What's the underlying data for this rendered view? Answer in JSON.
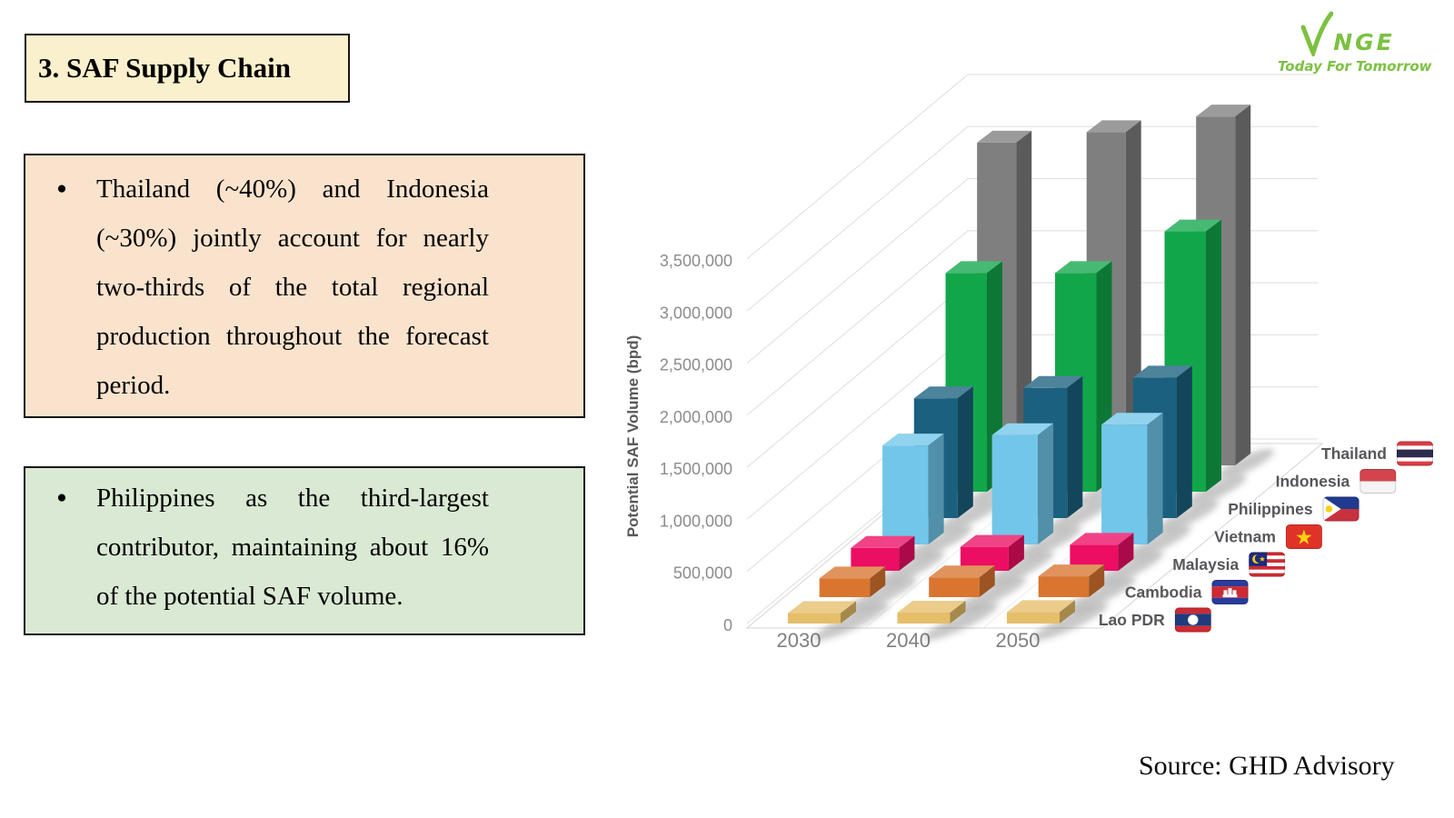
{
  "slide": {
    "title": "3. SAF Supply Chain",
    "bullets": [
      {
        "marker": "●",
        "text": "Thailand (~40%) and Indonesia (~30%) jointly account for nearly two-thirds of the total regional production throughout the forecast period."
      },
      {
        "marker": "●",
        "text": "Philippines as the third-largest contributor, maintaining about 16% of the potential SAF volume."
      }
    ],
    "logo": {
      "brand": "VNGE",
      "brand_mark_icon": "v-checkmark-icon",
      "brand_text": "NGE",
      "tagline": "Today For Tomorrow",
      "color": "#7CC142"
    },
    "source": "Source: GHD Advisory"
  },
  "chart_data": {
    "type": "bar",
    "projection": "3d",
    "title": "",
    "xlabel": "",
    "ylabel": "Potential SAF Volume (bpd)",
    "categories": [
      "2030",
      "2040",
      "2050"
    ],
    "y_ticks": [
      "0",
      "500,000",
      "1,000,000",
      "1,500,000",
      "2,000,000",
      "2,500,000",
      "3,000,000",
      "3,500,000"
    ],
    "ylim": [
      0,
      3500000
    ],
    "grid": true,
    "legend_position": "right-diagonal",
    "series": [
      {
        "name": "Thailand",
        "color": "#7F7F7F",
        "flag_icon": "thailand-flag",
        "values": [
          3100000,
          3200000,
          3350000
        ]
      },
      {
        "name": "Indonesia",
        "color": "#12A64B",
        "flag_icon": "indonesia-flag",
        "values": [
          2100000,
          2100000,
          2500000
        ]
      },
      {
        "name": "Philippines",
        "color": "#1B607F",
        "flag_icon": "philippines-flag",
        "values": [
          1150000,
          1250000,
          1350000
        ]
      },
      {
        "name": "Vietnam",
        "color": "#72C6E9",
        "flag_icon": "vietnam-flag",
        "values": [
          950000,
          1050000,
          1150000
        ]
      },
      {
        "name": "Malaysia",
        "color": "#EC0E63",
        "flag_icon": "malaysia-flag",
        "values": [
          220000,
          230000,
          250000
        ]
      },
      {
        "name": "Cambodia",
        "color": "#D9752F",
        "flag_icon": "cambodia-flag",
        "values": [
          180000,
          190000,
          200000
        ]
      },
      {
        "name": "Lao PDR",
        "color": "#E5BE6A",
        "flag_icon": "lao-pdr-flag",
        "values": [
          100000,
          105000,
          110000
        ]
      }
    ]
  }
}
